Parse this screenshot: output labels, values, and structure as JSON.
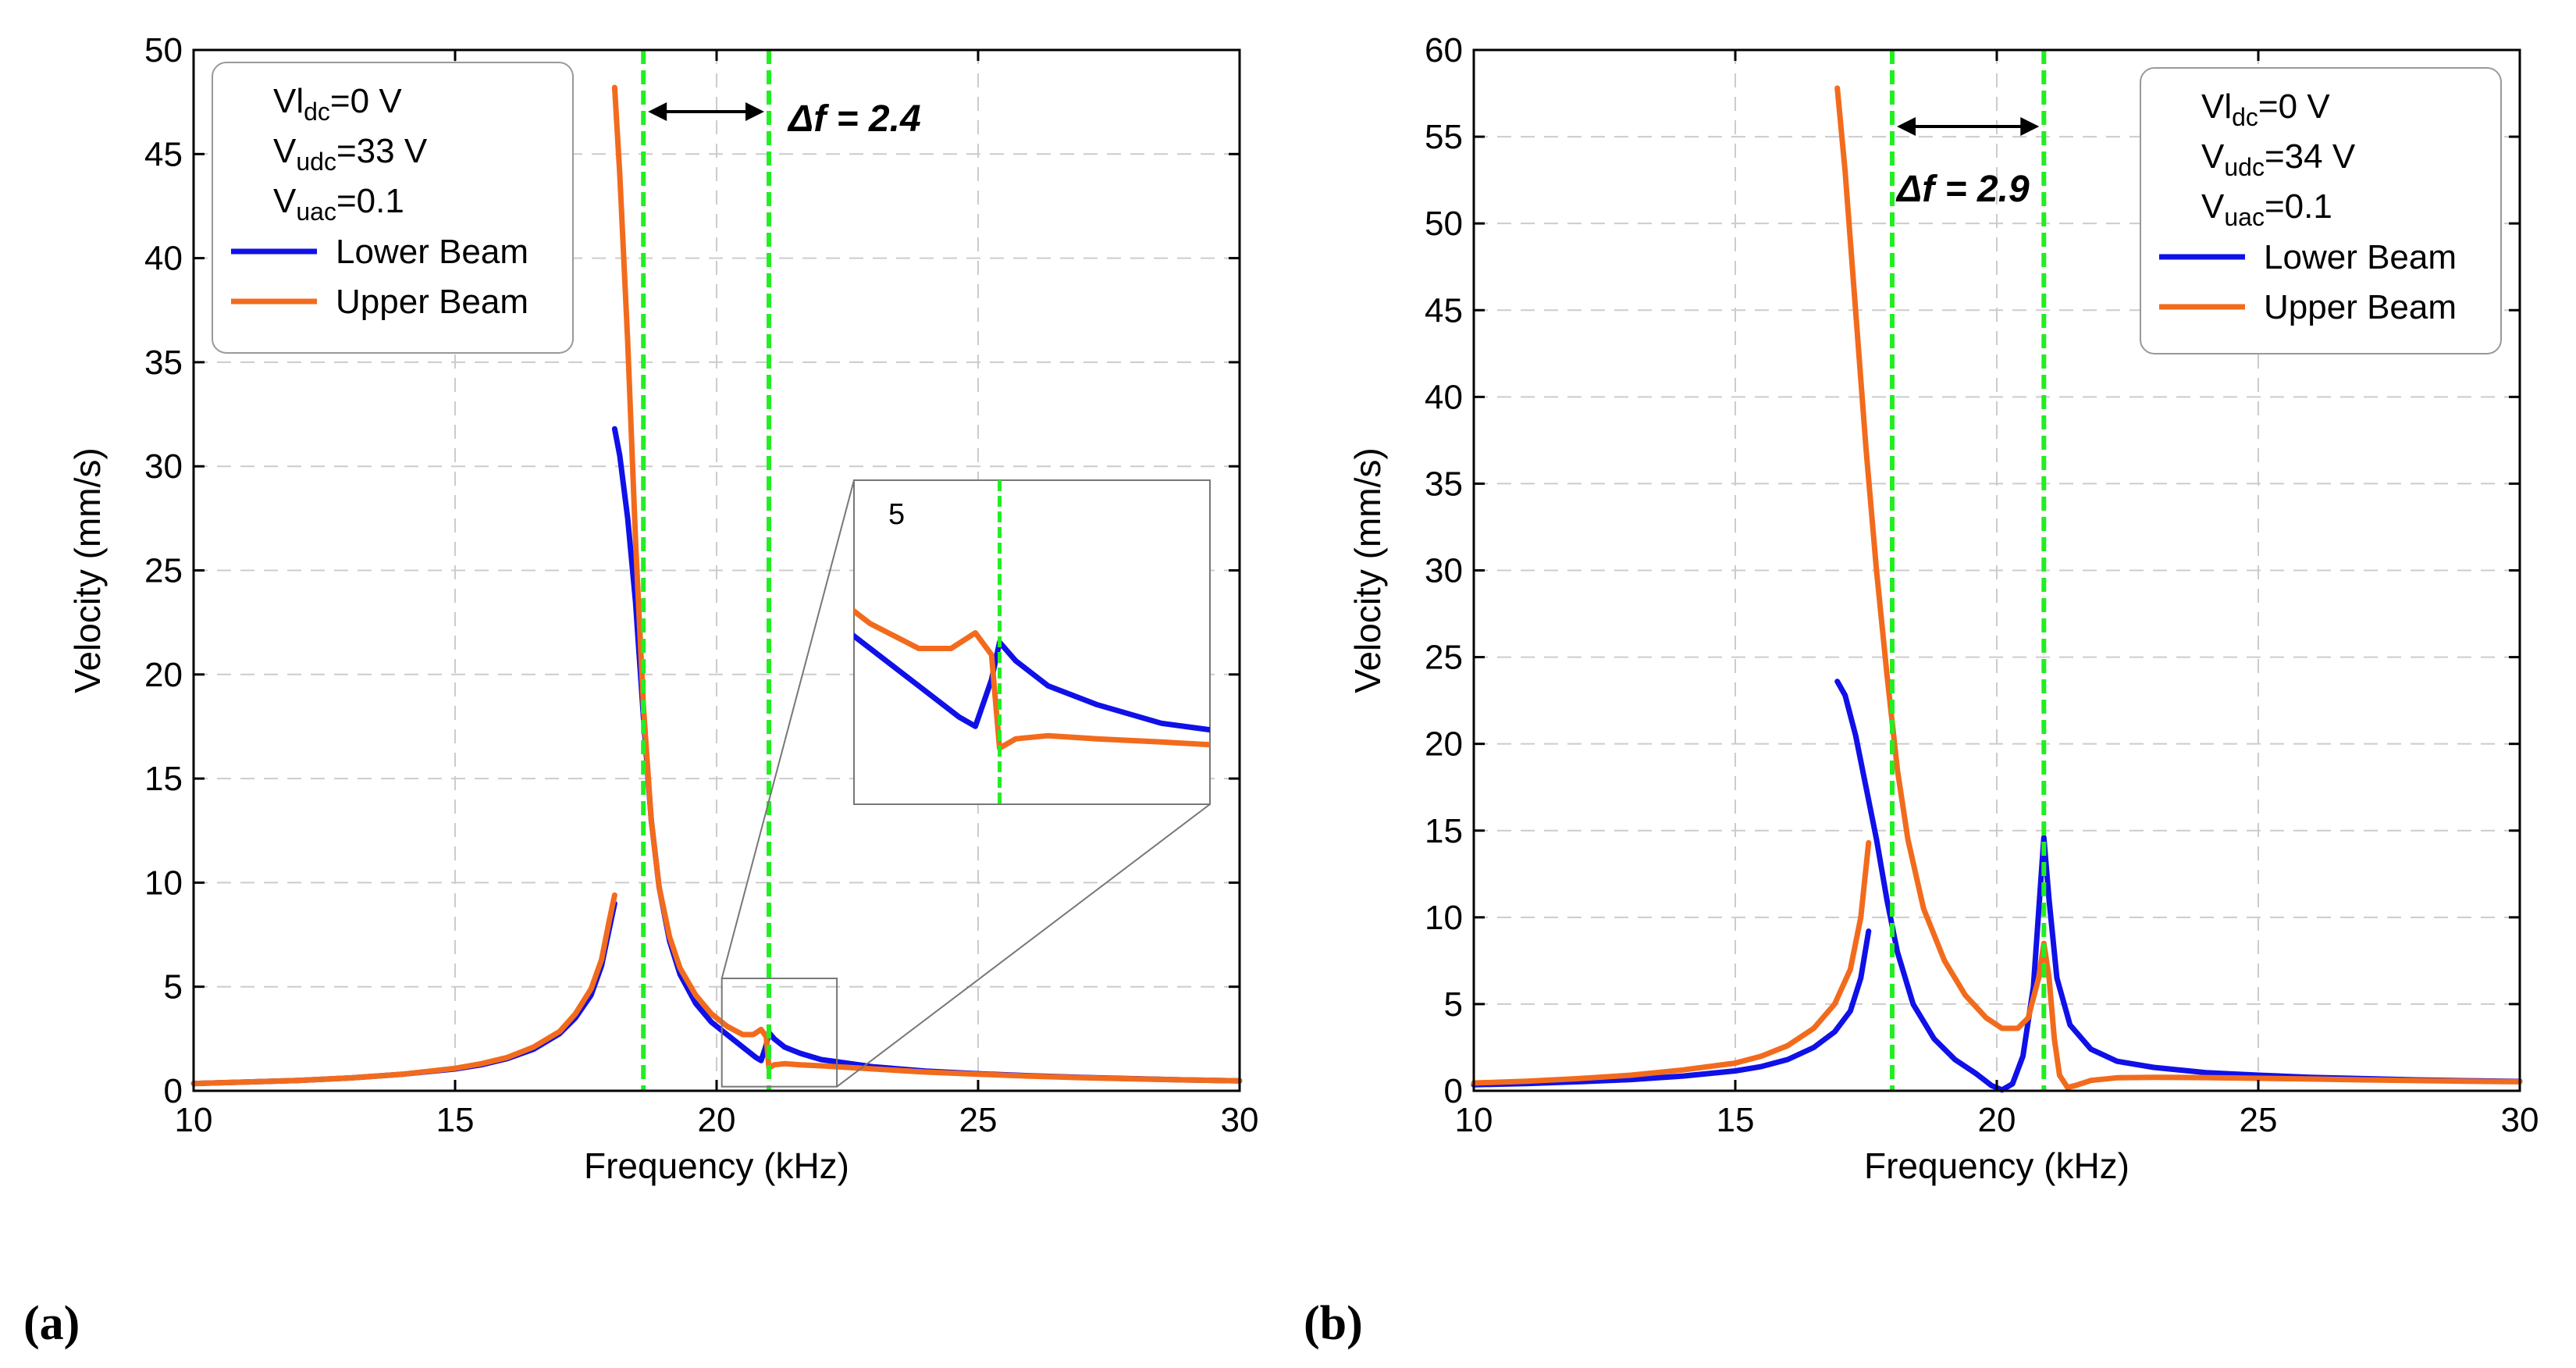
{
  "colors": {
    "lower": "#1010e8",
    "upper": "#f26b1d",
    "marker": "#22ee22",
    "grid": "#cccccc"
  },
  "chart_data": [
    {
      "type": "line",
      "panel_label": "(a)",
      "xlabel": "Frequency (kHz)",
      "ylabel": "Velocity (mm/s)",
      "xlim": [
        10,
        30
      ],
      "ylim": [
        0,
        50
      ],
      "xticks": [
        "10",
        "15",
        "20",
        "25",
        "30"
      ],
      "yticks": [
        "0",
        "5",
        "10",
        "15",
        "20",
        "25",
        "30",
        "35",
        "40",
        "45",
        "50"
      ],
      "grid": true,
      "legend_position": "top-left",
      "legend_lines": [
        {
          "main": "Vl",
          "sub": "dc",
          "rest": "=0 V"
        },
        {
          "main": "V",
          "sub": "udc",
          "rest": "=33 V"
        },
        {
          "main": "V",
          "sub": "uac",
          "rest": "=0.1"
        }
      ],
      "markers": [
        18.6,
        21.0
      ],
      "annotation": "Δf = 2.4",
      "inset": {
        "tick_label": "5",
        "xlim": [
          20.1,
          22.3
        ],
        "ylim": [
          0.2,
          5.4
        ],
        "marker": 21.0
      },
      "series": [
        {
          "name": "Lower Beam",
          "color": "#1010e8",
          "segments": [
            [
              [
                10,
                0.35
              ],
              [
                11,
                0.42
              ],
              [
                12,
                0.5
              ],
              [
                13,
                0.62
              ],
              [
                14,
                0.8
              ],
              [
                15,
                1.05
              ],
              [
                15.5,
                1.25
              ],
              [
                16,
                1.55
              ],
              [
                16.5,
                2.0
              ],
              [
                17,
                2.75
              ],
              [
                17.3,
                3.5
              ],
              [
                17.6,
                4.6
              ],
              [
                17.8,
                6.0
              ],
              [
                17.95,
                7.8
              ],
              [
                18.05,
                9.0
              ]
            ],
            [
              [
                18.05,
                31.8
              ],
              [
                18.15,
                30.5
              ],
              [
                18.3,
                27.5
              ],
              [
                18.45,
                23.5
              ],
              [
                18.6,
                18.0
              ],
              [
                18.75,
                13.0
              ],
              [
                18.9,
                9.8
              ],
              [
                19.1,
                7.2
              ],
              [
                19.3,
                5.6
              ],
              [
                19.6,
                4.2
              ],
              [
                19.9,
                3.3
              ],
              [
                20.2,
                2.7
              ],
              [
                20.5,
                2.1
              ],
              [
                20.75,
                1.6
              ],
              [
                20.85,
                1.45
              ],
              [
                20.95,
                2.2
              ],
              [
                21.0,
                2.8
              ],
              [
                21.1,
                2.5
              ],
              [
                21.3,
                2.1
              ],
              [
                21.6,
                1.8
              ],
              [
                22.0,
                1.5
              ],
              [
                23,
                1.15
              ],
              [
                24,
                0.95
              ],
              [
                25,
                0.82
              ],
              [
                26,
                0.72
              ],
              [
                27,
                0.64
              ],
              [
                28,
                0.58
              ],
              [
                29,
                0.52
              ],
              [
                30,
                0.48
              ]
            ]
          ]
        },
        {
          "name": "Upper Beam",
          "color": "#f26b1d",
          "segments": [
            [
              [
                10,
                0.35
              ],
              [
                11,
                0.42
              ],
              [
                12,
                0.5
              ],
              [
                13,
                0.62
              ],
              [
                14,
                0.8
              ],
              [
                15,
                1.08
              ],
              [
                15.5,
                1.3
              ],
              [
                16,
                1.6
              ],
              [
                16.5,
                2.1
              ],
              [
                17,
                2.85
              ],
              [
                17.3,
                3.7
              ],
              [
                17.6,
                4.9
              ],
              [
                17.8,
                6.3
              ],
              [
                17.95,
                8.2
              ],
              [
                18.05,
                9.4
              ]
            ],
            [
              [
                18.05,
                48.2
              ],
              [
                18.15,
                44.0
              ],
              [
                18.3,
                36.0
              ],
              [
                18.45,
                26.5
              ],
              [
                18.6,
                18.5
              ],
              [
                18.75,
                13.0
              ],
              [
                18.9,
                9.8
              ],
              [
                19.1,
                7.4
              ],
              [
                19.3,
                5.9
              ],
              [
                19.6,
                4.6
              ],
              [
                19.9,
                3.7
              ],
              [
                20.2,
                3.1
              ],
              [
                20.5,
                2.7
              ],
              [
                20.7,
                2.7
              ],
              [
                20.85,
                2.95
              ],
              [
                20.95,
                2.6
              ],
              [
                21.0,
                1.1
              ],
              [
                21.1,
                1.25
              ],
              [
                21.3,
                1.3
              ],
              [
                21.6,
                1.25
              ],
              [
                22.0,
                1.2
              ],
              [
                23,
                1.05
              ],
              [
                24,
                0.9
              ],
              [
                25,
                0.8
              ],
              [
                26,
                0.7
              ],
              [
                27,
                0.63
              ],
              [
                28,
                0.57
              ],
              [
                29,
                0.52
              ],
              [
                30,
                0.48
              ]
            ]
          ]
        }
      ]
    },
    {
      "type": "line",
      "panel_label": "(b)",
      "xlabel": "Frequency (kHz)",
      "ylabel": "Velocity (mm/s)",
      "xlim": [
        10,
        30
      ],
      "ylim": [
        0,
        60
      ],
      "xticks": [
        "10",
        "15",
        "20",
        "25",
        "30"
      ],
      "yticks": [
        "0",
        "5",
        "10",
        "15",
        "20",
        "25",
        "30",
        "35",
        "40",
        "45",
        "50",
        "55",
        "60"
      ],
      "grid": true,
      "legend_position": "top-right",
      "legend_lines": [
        {
          "main": "Vl",
          "sub": "dc",
          "rest": "=0 V"
        },
        {
          "main": "V",
          "sub": "udc",
          "rest": "=34 V"
        },
        {
          "main": "V",
          "sub": "uac",
          "rest": "=0.1"
        }
      ],
      "markers": [
        18.0,
        20.9
      ],
      "annotation": "Δf = 2.9",
      "series": [
        {
          "name": "Lower Beam",
          "color": "#1010e8",
          "segments": [
            [
              [
                10,
                0.35
              ],
              [
                11,
                0.42
              ],
              [
                12,
                0.52
              ],
              [
                13,
                0.65
              ],
              [
                14,
                0.85
              ],
              [
                15,
                1.15
              ],
              [
                15.5,
                1.4
              ],
              [
                16,
                1.8
              ],
              [
                16.5,
                2.5
              ],
              [
                16.9,
                3.4
              ],
              [
                17.2,
                4.6
              ],
              [
                17.4,
                6.5
              ],
              [
                17.55,
                9.2
              ]
            ],
            [
              [
                16.95,
                23.6
              ],
              [
                17.1,
                22.8
              ],
              [
                17.3,
                20.5
              ],
              [
                17.5,
                17.5
              ],
              [
                17.7,
                14.5
              ],
              [
                17.9,
                11.0
              ],
              [
                18.1,
                8.0
              ],
              [
                18.4,
                5.0
              ],
              [
                18.8,
                3.0
              ],
              [
                19.2,
                1.8
              ],
              [
                19.6,
                1.0
              ],
              [
                19.9,
                0.3
              ],
              [
                20.1,
                0.05
              ],
              [
                20.3,
                0.4
              ],
              [
                20.5,
                2.0
              ],
              [
                20.7,
                6.0
              ],
              [
                20.85,
                12.5
              ],
              [
                20.9,
                14.6
              ],
              [
                21.0,
                11.0
              ],
              [
                21.15,
                6.5
              ],
              [
                21.4,
                3.8
              ],
              [
                21.8,
                2.4
              ],
              [
                22.3,
                1.7
              ],
              [
                23,
                1.35
              ],
              [
                24,
                1.05
              ],
              [
                25,
                0.9
              ],
              [
                26,
                0.78
              ],
              [
                27,
                0.7
              ],
              [
                28,
                0.63
              ],
              [
                29,
                0.58
              ],
              [
                30,
                0.54
              ]
            ]
          ]
        },
        {
          "name": "Upper Beam",
          "color": "#f26b1d",
          "segments": [
            [
              [
                10,
                0.45
              ],
              [
                11,
                0.55
              ],
              [
                12,
                0.7
              ],
              [
                13,
                0.9
              ],
              [
                14,
                1.2
              ],
              [
                15,
                1.6
              ],
              [
                15.5,
                2.0
              ],
              [
                16,
                2.6
              ],
              [
                16.5,
                3.6
              ],
              [
                16.9,
                5.0
              ],
              [
                17.2,
                7.0
              ],
              [
                17.4,
                10.0
              ],
              [
                17.55,
                14.3
              ]
            ],
            [
              [
                16.95,
                57.8
              ],
              [
                17.1,
                53.0
              ],
              [
                17.3,
                45.0
              ],
              [
                17.5,
                37.0
              ],
              [
                17.7,
                30.0
              ],
              [
                17.9,
                24.0
              ],
              [
                18.1,
                18.5
              ],
              [
                18.3,
                14.5
              ],
              [
                18.6,
                10.5
              ],
              [
                19.0,
                7.5
              ],
              [
                19.4,
                5.5
              ],
              [
                19.8,
                4.2
              ],
              [
                20.1,
                3.6
              ],
              [
                20.4,
                3.6
              ],
              [
                20.6,
                4.2
              ],
              [
                20.8,
                6.5
              ],
              [
                20.9,
                8.5
              ],
              [
                21.0,
                6.5
              ],
              [
                21.1,
                3.0
              ],
              [
                21.2,
                0.9
              ],
              [
                21.35,
                0.2
              ],
              [
                21.5,
                0.3
              ],
              [
                21.8,
                0.6
              ],
              [
                22.3,
                0.75
              ],
              [
                23,
                0.78
              ],
              [
                24,
                0.76
              ],
              [
                25,
                0.72
              ],
              [
                26,
                0.68
              ],
              [
                27,
                0.63
              ],
              [
                28,
                0.59
              ],
              [
                29,
                0.55
              ],
              [
                30,
                0.52
              ]
            ]
          ]
        }
      ]
    }
  ]
}
